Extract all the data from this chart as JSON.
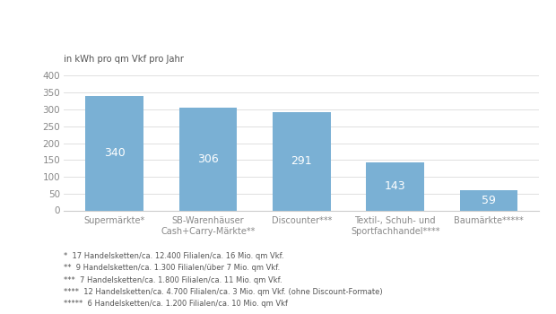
{
  "ylabel": "in kWh pro qm Vkf pro Jahr",
  "categories": [
    "Supermärkte*",
    "SB-Warenhäuser\nCash+Carry-Märkte**",
    "Discounter***",
    "Textil-, Schuh- und\nSportfachhandel****",
    "Baumärkte*****"
  ],
  "values": [
    340,
    306,
    291,
    143,
    59
  ],
  "bar_color": "#7ab0d4",
  "ylim": [
    0,
    420
  ],
  "yticks": [
    0,
    50,
    100,
    150,
    200,
    250,
    300,
    350,
    400
  ],
  "footnotes": [
    "*  17 Handelsketten/ca. 12.400 Filialen/ca. 16 Mio. qm Vkf.",
    "**  9 Handelsketten/ca. 1.300 Filialen/über 7 Mio. qm Vkf.",
    "***  7 Handelsketten/ca. 1.800 Filialen/ca. 11 Mio. qm Vkf.",
    "****  12 Handelsketten/ca. 4.700 Filialen/ca. 3 Mio. qm Vkf. (ohne Discount-Formate)",
    "*****  6 Handelsketten/ca. 1.200 Filialen/ca. 10 Mio. qm Vkf"
  ],
  "value_label_color": "#ffffff",
  "value_label_fontsize": 9,
  "bar_width": 0.62,
  "label_fontsize": 7.0,
  "ylabel_fontsize": 7.2,
  "footnote_fontsize": 6.0,
  "ytick_fontsize": 7.5,
  "grid_color": "#e0e0e0",
  "spine_color": "#cccccc",
  "tick_color": "#888888",
  "footnote_color": "#555555"
}
